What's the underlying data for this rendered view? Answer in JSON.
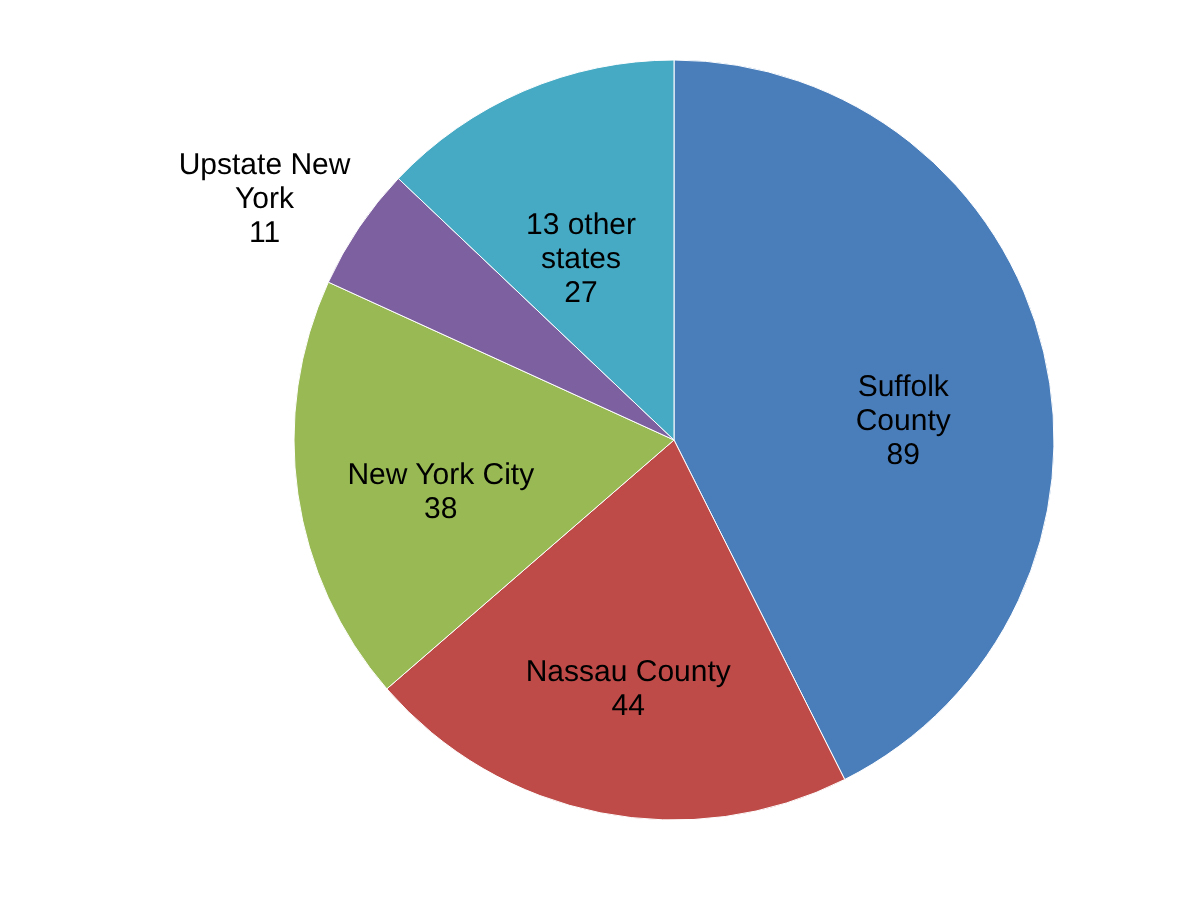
{
  "chart_data": {
    "type": "pie",
    "categories": [
      "Suffolk County",
      "Nassau County",
      "New York City",
      "Upstate New York",
      "13 other states"
    ],
    "values": [
      89,
      44,
      38,
      11,
      27
    ],
    "colors": [
      "#4a7ebb",
      "#be4b48",
      "#98b954",
      "#7d60a0",
      "#46aac5"
    ],
    "data_labels": true
  }
}
